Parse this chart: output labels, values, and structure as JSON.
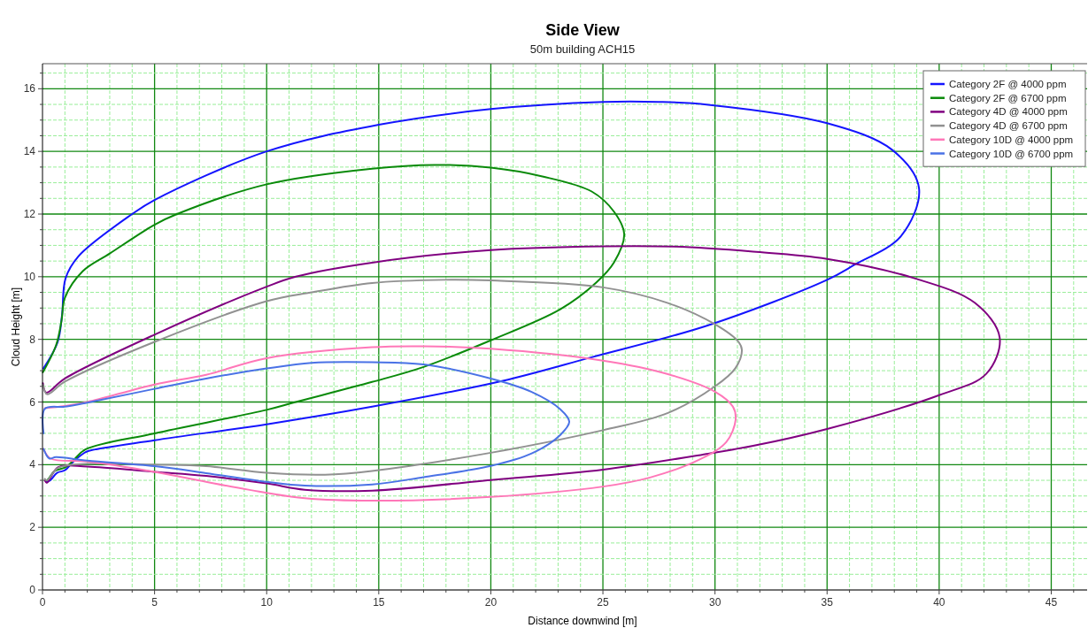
{
  "chart_data": {
    "type": "line",
    "title": "Side View",
    "subtitle": "50m building ACH15",
    "xlabel": "Distance downwind [m]",
    "ylabel": "Cloud Height [m]",
    "xlim": [
      0,
      46.6
    ],
    "ylim": [
      0,
      16.8
    ],
    "xticks": [
      0,
      {
        "value": 1,
        "label": null
      },
      {
        "value": 2,
        "label": null
      },
      {
        "value": 3,
        "label": null
      },
      {
        "value": 4,
        "label": null
      },
      5,
      {
        "value": 6,
        "label": null
      },
      {
        "value": 7,
        "label": null
      },
      {
        "value": 8,
        "label": null
      },
      {
        "value": 9,
        "label": null
      },
      10,
      {
        "value": 11,
        "label": null
      },
      {
        "value": 12,
        "label": null
      },
      {
        "value": 13,
        "label": null
      },
      {
        "value": 14,
        "label": null
      },
      15,
      {
        "value": 16,
        "label": null
      },
      {
        "value": 17,
        "label": null
      },
      {
        "value": 18,
        "label": null
      },
      {
        "value": 19,
        "label": null
      },
      20,
      {
        "value": 21,
        "label": null
      },
      {
        "value": 22,
        "label": null
      },
      {
        "value": 23,
        "label": null
      },
      {
        "value": 24,
        "label": null
      },
      25,
      {
        "value": 26,
        "label": null
      },
      {
        "value": 27,
        "label": null
      },
      {
        "value": 28,
        "label": null
      },
      {
        "value": 29,
        "label": null
      },
      30,
      {
        "value": 31,
        "label": null
      },
      {
        "value": 32,
        "label": null
      },
      {
        "value": 33,
        "label": null
      },
      {
        "value": 34,
        "label": null
      },
      35,
      {
        "value": 36,
        "label": null
      },
      {
        "value": 37,
        "label": null
      },
      {
        "value": 38,
        "label": null
      },
      {
        "value": 39,
        "label": null
      },
      40,
      {
        "value": 41,
        "label": null
      },
      {
        "value": 42,
        "label": null
      },
      {
        "value": 43,
        "label": null
      },
      {
        "value": 44,
        "label": null
      },
      45,
      {
        "value": 46,
        "label": null
      }
    ],
    "yticks": [
      0,
      {
        "value": 0.5,
        "label": null
      },
      {
        "value": 1,
        "label": null
      },
      {
        "value": 1.5,
        "label": null
      },
      2,
      {
        "value": 2.5,
        "label": null
      },
      {
        "value": 3,
        "label": null
      },
      {
        "value": 3.5,
        "label": null
      },
      4,
      {
        "value": 4.5,
        "label": null
      },
      {
        "value": 5,
        "label": null
      },
      {
        "value": 5.5,
        "label": null
      },
      6,
      {
        "value": 6.5,
        "label": null
      },
      {
        "value": 7,
        "label": null
      },
      {
        "value": 7.5,
        "label": null
      },
      8,
      {
        "value": 8.5,
        "label": null
      },
      {
        "value": 9,
        "label": null
      },
      {
        "value": 9.5,
        "label": null
      },
      10,
      {
        "value": 10.5,
        "label": null
      },
      {
        "value": 11,
        "label": null
      },
      {
        "value": 11.5,
        "label": null
      },
      12,
      {
        "value": 12.5,
        "label": null
      },
      {
        "value": 13,
        "label": null
      },
      {
        "value": 13.5,
        "label": null
      },
      14,
      {
        "value": 14.5,
        "label": null
      },
      {
        "value": 15,
        "label": null
      },
      {
        "value": 15.5,
        "label": null
      },
      16,
      {
        "value": 16.5,
        "label": null
      }
    ],
    "grid": true,
    "legend": "top right",
    "line_style": "solid",
    "marker": "none",
    "series": [
      {
        "name": "Category 2F @ 4000 ppm",
        "color": "#1414ff",
        "x": [
          0.04,
          0.67,
          0.87,
          1.03,
          1.6,
          4.0,
          5,
          10,
          15,
          20,
          25,
          27.5,
          29.7,
          35,
          37.9,
          39.1,
          38.3,
          36.2,
          35,
          29.7,
          24.5,
          20.5,
          14.7,
          10,
          5,
          2.06,
          1.85,
          1.34,
          1.0,
          0.65,
          0.35,
          0.2
        ],
        "values": [
          7.07,
          7.9,
          8.76,
          9.95,
          10.65,
          12.0,
          12.45,
          14.0,
          14.85,
          15.35,
          15.58,
          15.58,
          15.49,
          14.9,
          14.05,
          12.83,
          11.3,
          10.37,
          9.9,
          8.45,
          7.43,
          6.67,
          5.85,
          5.29,
          4.78,
          4.44,
          4.37,
          4.07,
          3.82,
          3.74,
          3.5,
          3.45
        ]
      },
      {
        "name": "Category 2F @ 6700 ppm",
        "color": "#0a8a0a",
        "x": [
          0.02,
          0.6,
          0.85,
          1.0,
          1.8,
          3.0,
          5,
          6.0,
          10,
          14.7,
          17.5,
          20,
          22.3,
          24.5,
          25.5,
          25.95,
          25.5,
          24.7,
          23.1,
          20,
          17,
          14.7,
          11.3,
          10,
          5,
          1.93,
          1.46,
          1.04,
          0.55,
          0.2,
          0.1
        ],
        "values": [
          6.95,
          7.8,
          8.6,
          9.33,
          10.18,
          10.74,
          11.66,
          12.0,
          12.95,
          13.45,
          13.57,
          13.48,
          13.2,
          12.72,
          12.07,
          11.36,
          10.46,
          9.81,
          8.96,
          7.97,
          7.12,
          6.64,
          6.0,
          5.75,
          5.0,
          4.49,
          4.2,
          3.92,
          3.8,
          3.5,
          3.5
        ]
      },
      {
        "name": "Category 4D @ 4000 ppm",
        "color": "#800080",
        "x": [
          0.02,
          0.17,
          1.0,
          5,
          10,
          11.3,
          14.7,
          20,
          25,
          28.2,
          31.7,
          35,
          38.9,
          41.6,
          42.7,
          42.1,
          40.0,
          35,
          31.7,
          29.7,
          25,
          20,
          14.7,
          11.7,
          10,
          7.3,
          5,
          2.0,
          0.7,
          0.2,
          0.1
        ],
        "values": [
          6.6,
          6.3,
          6.75,
          8.15,
          9.68,
          10.0,
          10.45,
          10.85,
          10.97,
          10.96,
          10.8,
          10.57,
          9.95,
          9.16,
          8.06,
          6.9,
          6.22,
          5.14,
          4.6,
          4.35,
          3.84,
          3.51,
          3.17,
          3.2,
          3.4,
          3.64,
          3.77,
          3.94,
          3.92,
          3.42,
          3.5
        ]
      },
      {
        "name": "Category 4D @ 6700 ppm",
        "color": "#919191",
        "x": [
          0.02,
          0.2,
          1,
          5,
          10,
          12,
          14.7,
          17.9,
          20,
          25,
          27.9,
          30,
          31.05,
          31.2,
          30.9,
          30,
          27.9,
          25,
          20,
          14.7,
          12.6,
          10,
          7.3,
          5,
          2.0,
          0.7,
          0.2,
          0.1
        ],
        "values": [
          6.55,
          6.25,
          6.65,
          7.92,
          9.22,
          9.5,
          9.8,
          9.9,
          9.88,
          9.66,
          9.16,
          8.48,
          7.92,
          7.66,
          7.07,
          6.5,
          5.65,
          5.1,
          4.38,
          3.8,
          3.68,
          3.74,
          3.95,
          4.0,
          4.03,
          3.9,
          3.5,
          3.55
        ]
      },
      {
        "name": "Category 10D @ 4000 ppm",
        "color": "#ff77b8",
        "x": [
          0.1,
          1,
          2,
          5,
          7.3,
          10,
          14.7,
          17,
          20,
          25,
          27.9,
          30,
          30.8,
          30.92,
          30.5,
          29.3,
          27.1,
          25,
          20,
          14.7,
          11.7,
          10,
          7.3,
          5,
          2,
          0.35,
          0.05
        ],
        "values": [
          5.8,
          5.87,
          6.0,
          6.56,
          6.87,
          7.4,
          7.75,
          7.78,
          7.7,
          7.32,
          6.89,
          6.33,
          5.85,
          5.43,
          4.72,
          4.16,
          3.59,
          3.3,
          2.97,
          2.85,
          2.93,
          3.1,
          3.45,
          3.77,
          4.1,
          4.2,
          4.5
        ]
      },
      {
        "name": "Category 10D @ 6700 ppm",
        "color": "#4a72e6",
        "x": [
          0.05,
          0.1,
          1,
          2,
          5,
          7.3,
          10,
          12,
          14.7,
          17,
          20,
          21.8,
          23.1,
          23.5,
          23.1,
          21.8,
          20,
          17,
          14.7,
          11.7,
          10,
          7.3,
          5,
          2,
          0.6,
          0.3,
          0.05
        ],
        "values": [
          5.0,
          5.78,
          5.85,
          5.98,
          6.42,
          6.75,
          7.07,
          7.25,
          7.27,
          7.2,
          6.75,
          6.33,
          5.77,
          5.37,
          4.95,
          4.35,
          3.96,
          3.6,
          3.37,
          3.33,
          3.45,
          3.73,
          3.95,
          4.13,
          4.24,
          4.2,
          4.5
        ]
      }
    ]
  }
}
